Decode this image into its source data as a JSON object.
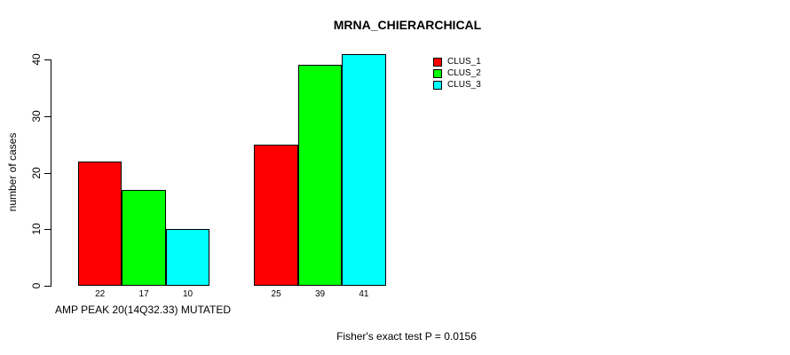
{
  "chart_data": {
    "type": "bar",
    "title": "MRNA_CHIERARCHICAL",
    "ylabel": "number of cases",
    "xlabel": "AMP PEAK 20(14Q32.33) MUTATED",
    "annotation": "Fisher's exact test P = 0.0156",
    "ylim": [
      0,
      40
    ],
    "yticks": [
      0,
      10,
      20,
      30,
      40
    ],
    "group_count": 2,
    "series": [
      {
        "name": "CLUS_1",
        "color": "#ff0000",
        "values": [
          22,
          25
        ]
      },
      {
        "name": "CLUS_2",
        "color": "#00ff00",
        "values": [
          17,
          39
        ]
      },
      {
        "name": "CLUS_3",
        "color": "#00ffff",
        "values": [
          10,
          41
        ]
      }
    ],
    "bar_value_labels_shown": true,
    "legend_position": "top-right",
    "grid": false,
    "background_color": "#ffffff",
    "axis_color": "#000000"
  }
}
